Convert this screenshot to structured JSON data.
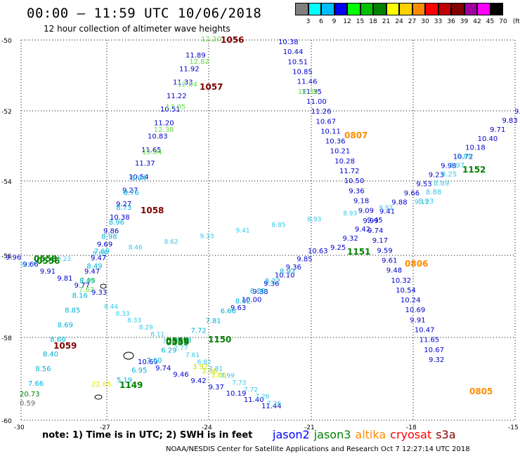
{
  "header": {
    "title": "00:00 – 11:59 UTC 10/06/2018",
    "subtitle": "12 hour collection of altimeter wave heights"
  },
  "colorbar": {
    "labels": [
      "3",
      "6",
      "9",
      "12",
      "15",
      "18",
      "21",
      "24",
      "27",
      "30",
      "33",
      "36",
      "39",
      "42",
      "45",
      "70",
      "(ft)"
    ],
    "colors": [
      "#7f7f7f",
      "#00ffff",
      "#00bfff",
      "#0000ff",
      "#00ff00",
      "#00c000",
      "#008000",
      "#ffff00",
      "#ffd000",
      "#ff8c00",
      "#ff0000",
      "#c00000",
      "#800000",
      "#a000a0",
      "#ff00ff",
      "#000000"
    ]
  },
  "axes": {
    "lat_labels": [
      "-50",
      "-52",
      "-54",
      "-56",
      "-58",
      "-60"
    ],
    "lon_labels": [
      "-30",
      "-27",
      "-24",
      "-21",
      "-18",
      "-15"
    ]
  },
  "tracks": {
    "jason2_a": [
      "10.38",
      "10.44",
      "10.51",
      "10.85",
      "11.46",
      "11.35",
      "11.00",
      "11.26",
      "10.67",
      "10.11",
      "10.36",
      "10.21",
      "10.28",
      "11.72",
      "10.50",
      "9.36",
      "9.18",
      "9.09",
      "9.99",
      "9.74",
      "9.17",
      "9.59",
      "9.61",
      "9.48",
      "10.32",
      "10.54",
      "10.24",
      "10.69",
      "9.91",
      "10.47",
      "11.65",
      "10.67",
      "9.32"
    ],
    "jason2_b": [
      "11.89",
      "11.92",
      "11.33",
      "11.22",
      "10.51",
      "11.20",
      "10.83",
      "11.65",
      "11.37",
      "10.54",
      "9.27",
      "9.27",
      "10.38",
      "9.86",
      "9.69",
      "9.47",
      "9.47"
    ],
    "jason2_c": [
      "10.63",
      "9.85",
      "9.36",
      "10.10",
      "9.36",
      "9.38",
      "10.00",
      "9.63"
    ],
    "jason2_d": [
      "9.25",
      "9.32",
      "9.42",
      "9.45",
      "9.41",
      "9.88",
      "9.66",
      "9.53",
      "9.23",
      "9.98",
      "10.72",
      "10.18",
      "10.40",
      "9.71",
      "9.83",
      "9.8"
    ],
    "jason2_e": [
      "10.69",
      "9.74",
      "9.46",
      "9.42",
      "9.37",
      "10.19",
      "11.40",
      "11.44"
    ],
    "jason2_f": [
      "9.96",
      "9.66",
      "9.91",
      "9.81",
      "9.77",
      "9.33"
    ],
    "jason3_a": [
      "12.20",
      "12.82",
      "12.04",
      "13.05",
      "12.38",
      "13.04"
    ],
    "jason3_b": [
      "12.39"
    ],
    "jason3_c": [
      "3.92",
      "3.96",
      "3.86"
    ],
    "jason3_d": [
      "7.95",
      "7.62"
    ],
    "jason3_e": [
      "0558",
      "0556",
      "0559",
      "0559",
      "1150",
      "1149",
      "1151",
      "1152"
    ],
    "s3a": [
      "1056",
      "1057",
      "1058",
      "1059"
    ],
    "altika": [
      "0807",
      "0806",
      "0805"
    ],
    "cyan_a": [
      "8.94",
      "8.76",
      "8.73",
      "8.96",
      "8.98",
      "7.69",
      "8.49",
      "8.49",
      "8.16",
      "8.85",
      "8.69",
      "8.60",
      "8.40",
      "8.56",
      "7.66"
    ],
    "cyan_b": [
      "8.93",
      "8.22",
      "8.89",
      "8.02",
      "6.66",
      "7.81",
      "7.72",
      "6.53",
      "6.29",
      "7.60",
      "6.95",
      "5.19"
    ],
    "cyan_c": [
      "9.13",
      "9.92",
      "8.93",
      "8.93",
      "8.85",
      "9.41",
      "9.33",
      "8.62",
      "8.46",
      "8.89",
      "9.23",
      "9.17"
    ],
    "cyan_d": [
      "8.89",
      "8.97",
      "9.25",
      "8.89",
      "8.88",
      "8.93"
    ],
    "cyan_e": [
      "8.44",
      "8.33",
      "8.33",
      "8.29",
      "8.11",
      "7.78",
      "7.77",
      "7.61",
      "6.82",
      "7.81",
      "7.99",
      "7.73",
      "7.72",
      "7.26",
      "7.26"
    ],
    "misc": [
      "20.73",
      "0.59",
      "22.85"
    ]
  },
  "footer": {
    "note": "note:  1) Time is in UTC;  2) SWH is in feet",
    "satellites": [
      {
        "name": "jason2",
        "color": "#0000ff"
      },
      {
        "name": "jason3",
        "color": "#008000"
      },
      {
        "name": "altika",
        "color": "#ff8c00"
      },
      {
        "name": "cryosat",
        "color": "#ff0000"
      },
      {
        "name": "s3a",
        "color": "#800000"
      }
    ],
    "credit": "NOAA/NESDIS Center for Satellite Applications and Research     Oct  7 12:27:14 UTC 2018"
  }
}
